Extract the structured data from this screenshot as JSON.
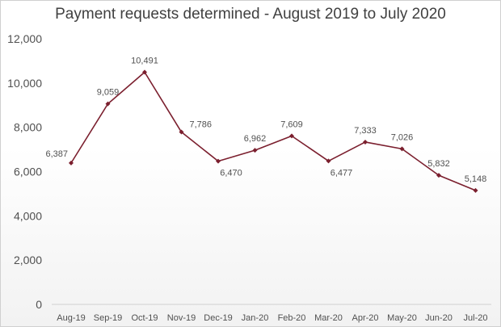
{
  "chart_data": {
    "type": "line",
    "title": "Payment requests determined - August 2019 to July 2020",
    "xlabel": "",
    "ylabel": "",
    "categories": [
      "Aug-19",
      "Sep-19",
      "Oct-19",
      "Nov-19",
      "Dec-19",
      "Jan-20",
      "Feb-20",
      "Mar-20",
      "Apr-20",
      "May-20",
      "Jun-20",
      "Jul-20"
    ],
    "series": [
      {
        "values": [
          6387,
          9059,
          10491,
          7786,
          6470,
          6962,
          7609,
          6477,
          7333,
          7026,
          5832,
          5148
        ],
        "labels": [
          "6,387",
          "9,059",
          "10,491",
          "7,786",
          "6,470",
          "6,962",
          "7,609",
          "6,477",
          "7,333",
          "7,026",
          "5,832",
          "5,148"
        ]
      }
    ],
    "ylim": [
      0,
      12000
    ],
    "yticks": [
      "0",
      "2,000",
      "4,000",
      "6,000",
      "8,000",
      "10,000",
      "12,000"
    ],
    "grid": false,
    "legend": "none",
    "colors": {
      "line": "#7b1f2e",
      "marker": "#7b1f2e",
      "axis": "#d0d0d0"
    }
  }
}
